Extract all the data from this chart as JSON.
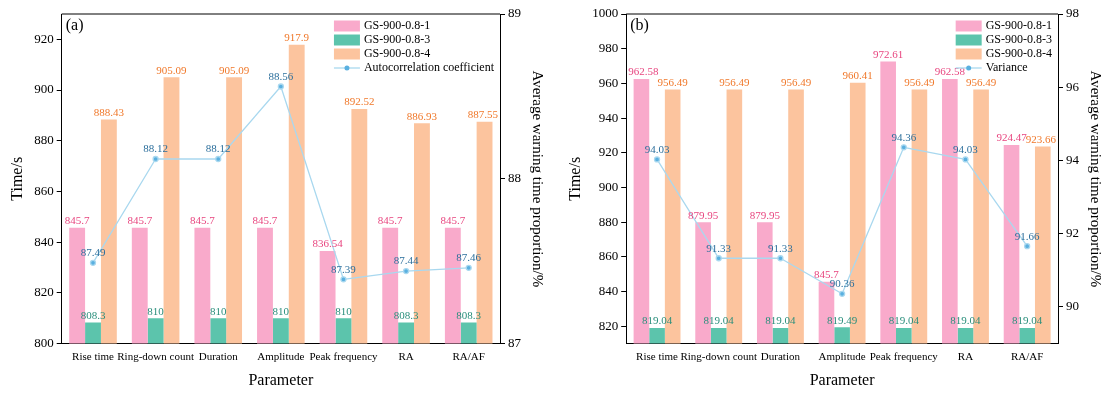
{
  "chart_data": [
    {
      "type": "bar",
      "annotations": [
        "(a)"
      ],
      "xlabel": "Parameter",
      "ylabel": "Time/s",
      "y2label": "Average warning time proportion/%",
      "categories": [
        "Rise time",
        "Ring-down count",
        "Duration",
        "Amplitude",
        "Peak frequency",
        "RA",
        "RA/AF"
      ],
      "series": [
        {
          "name": "GS-900-0.8-1",
          "color": "#f9aacb",
          "values": [
            845.7,
            845.7,
            845.7,
            845.7,
            836.54,
            845.7,
            845.7
          ]
        },
        {
          "name": "GS-900-0.8-3",
          "color": "#5cc4ac",
          "values": [
            808.3,
            810,
            810,
            810,
            810,
            808.3,
            808.3
          ]
        },
        {
          "name": "GS-900-0.8-4",
          "color": "#fcc49e",
          "values": [
            888.43,
            905.09,
            905.09,
            917.9,
            892.52,
            886.93,
            887.55
          ]
        },
        {
          "name": "Autocorrelation coefficient",
          "type": "line",
          "axis": "y2",
          "color": "#a9d8ef",
          "values": [
            87.49,
            88.12,
            88.12,
            88.56,
            87.39,
            87.44,
            87.46
          ]
        }
      ],
      "ylim": [
        800,
        930
      ],
      "yticks": [
        800,
        820,
        840,
        860,
        880,
        900,
        920
      ],
      "y2lim": [
        87,
        89
      ],
      "y2ticks": [
        87,
        88,
        89
      ],
      "data_labels": true,
      "legend": "top right",
      "grid": false,
      "marker": "circle"
    },
    {
      "type": "bar",
      "annotations": [
        "(b)"
      ],
      "xlabel": "Parameter",
      "ylabel": "Time/s",
      "y2label": "Average warning time proportion/%",
      "categories": [
        "Rise time",
        "Ring-down count",
        "Duration",
        "Amplitude",
        "Peak frequency",
        "RA",
        "RA/AF"
      ],
      "series": [
        {
          "name": "GS-900-0.8-1",
          "color": "#f9aacb",
          "values": [
            962.58,
            879.95,
            879.95,
            845.7,
            972.61,
            962.58,
            924.47
          ]
        },
        {
          "name": "GS-900-0.8-3",
          "color": "#5cc4ac",
          "values": [
            819.04,
            819.04,
            819.04,
            819.49,
            819.04,
            819.04,
            819.04
          ]
        },
        {
          "name": "GS-900-0.8-4",
          "color": "#fcc49e",
          "values": [
            956.49,
            956.49,
            956.49,
            960.41,
            956.49,
            956.49,
            923.66
          ]
        },
        {
          "name": "Variance",
          "type": "line",
          "axis": "y2",
          "color": "#a9d8ef",
          "values": [
            94.03,
            91.33,
            91.33,
            90.36,
            94.36,
            94.03,
            91.66
          ]
        }
      ],
      "ylim": [
        810,
        1000
      ],
      "yticks": [
        820,
        840,
        860,
        880,
        900,
        920,
        940,
        960,
        980,
        1000
      ],
      "y2lim": [
        89,
        98
      ],
      "y2ticks": [
        90,
        92,
        94,
        96,
        98
      ],
      "data_labels": true,
      "legend": "top right",
      "grid": false,
      "marker": "circle"
    }
  ]
}
